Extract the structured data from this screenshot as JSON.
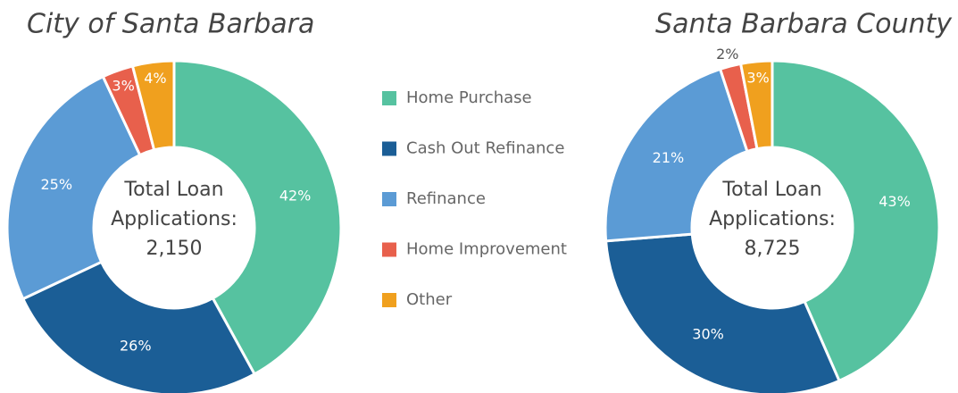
{
  "chart_data": [
    {
      "type": "donut",
      "title": "City of Santa Barbara",
      "categories": [
        "Home Purchase",
        "Cash Out Refinance",
        "Refinance",
        "Home Improvement",
        "Other"
      ],
      "colors": [
        "#56c2a0",
        "#1b5e96",
        "#5b9bd5",
        "#e8604c",
        "#f0a01e"
      ],
      "values": [
        42,
        26,
        25,
        3,
        4
      ],
      "value_labels": [
        "42%",
        "26%",
        "25%",
        "3%",
        "4%"
      ],
      "center_label": [
        "Total Loan",
        "Applications:"
      ],
      "total": 2150,
      "total_label": "2,150"
    },
    {
      "type": "donut",
      "title": "Santa Barbara County",
      "values": [
        43,
        30,
        21,
        2,
        3
      ],
      "value_labels": [
        "43%",
        "30%",
        "21%",
        "2%",
        "3%"
      ],
      "center_label": [
        "Total Loan",
        "Applications:"
      ],
      "total": 8725,
      "total_label": "8,725"
    }
  ]
}
